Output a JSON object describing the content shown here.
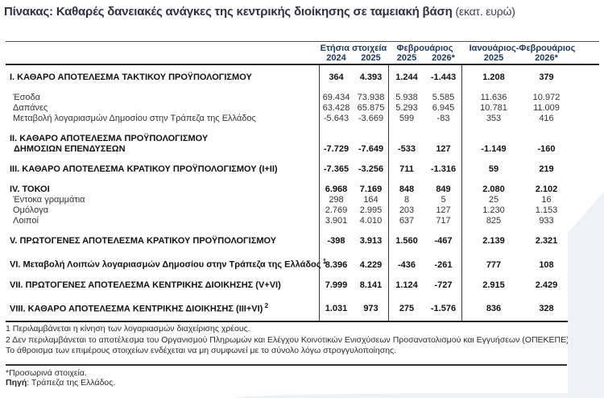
{
  "title": {
    "main": "Πίνακας: Καθαρές δανειακές ανάγκες της κεντρικής διοίκησης σε ταμειακή βάση",
    "unit": "(εκατ. ευρώ)"
  },
  "table": {
    "col_groups": [
      {
        "label": "Ετήσια στοιχεία",
        "cols": [
          "2024",
          "2025"
        ]
      },
      {
        "label": "Φεβρουάριος",
        "cols": [
          "2025",
          "2026*"
        ]
      },
      {
        "label": "Ιανουάριος-Φεβρουάριος",
        "cols": [
          "2025",
          "2026*"
        ]
      }
    ],
    "rows": [
      {
        "label": "Ι. ΚΑΘΑΡΟ ΑΠΟΤΕΛΕΣΜΑ  ΤΑΚΤΙΚΟΥ ΠΡΟΫΠΟΛΟΓΙΣΜΟΥ",
        "style": "main",
        "spacer": false,
        "values": [
          "364",
          "4.393",
          "1.244",
          "-1.443",
          "1.208",
          "379"
        ]
      },
      {
        "label": "Έσοδα",
        "style": "sub",
        "spacer": true,
        "values": [
          "69.434",
          "73.938",
          "5.938",
          "5.585",
          "11.636",
          "10.972"
        ]
      },
      {
        "label": "Δαπάνες",
        "style": "sub",
        "spacer": false,
        "values": [
          "63.428",
          "65.875",
          "5.293",
          "6.945",
          "10.781",
          "11.009"
        ]
      },
      {
        "label": "Μεταβολή λογαριασμών Δημοσίου στην Τράπεζα της Ελλάδος",
        "style": "sub",
        "spacer": false,
        "values": [
          "-5.643",
          "-3.669",
          "599",
          "-83",
          "353",
          "416"
        ]
      },
      {
        "label": "ΙΙ. ΚΑΘΑΡΟ ΑΠΟΤΕΛΕΣΜΑ ΠΡΟΫΠΟΛΟΓΙΣΜΟΥ",
        "label2": "ΔΗΜΟΣΙΩΝ ΕΠΕΝΔΥΣΕΩΝ",
        "style": "main",
        "spacer": true,
        "values": [
          "-7.729",
          "-7.649",
          "-533",
          "127",
          "-1.149",
          "-160"
        ]
      },
      {
        "label": "ΙΙΙ. ΚΑΘΑΡΟ ΑΠΟΤΕΛΕΣΜΑ ΚΡΑΤΙΚΟΥ ΠΡΟΫΠΟΛΟΓΙΣΜΟΥ (Ι+ΙΙ)",
        "style": "main",
        "spacer": true,
        "values": [
          "-7.365",
          "-3.256",
          "711",
          "-1.316",
          "59",
          "219"
        ]
      },
      {
        "label": "IV. ΤΟΚΟΙ",
        "style": "main",
        "spacer": true,
        "values": [
          "6.968",
          "7.169",
          "848",
          "849",
          "2.080",
          "2.102"
        ]
      },
      {
        "label": "Έντοκα γραμμάτια",
        "style": "sub",
        "spacer": false,
        "values": [
          "298",
          "164",
          "8",
          "5",
          "25",
          "16"
        ]
      },
      {
        "label": "Ομόλογα",
        "style": "sub",
        "spacer": false,
        "values": [
          "2.769",
          "2.995",
          "203",
          "127",
          "1.230",
          "1.153"
        ]
      },
      {
        "label": "Λοιποί",
        "style": "sub",
        "spacer": false,
        "values": [
          "3.901",
          "4.010",
          "637",
          "717",
          "825",
          "933"
        ]
      },
      {
        "label": "V. ΠΡΩΤΟΓΕΝΕΣ ΑΠΟΤΕΛΕΣΜΑ  ΚΡΑΤΙΚΟΥ ΠΡΟΫΠΟΛΟΓΙΣΜΟΥ",
        "style": "main",
        "spacer": true,
        "values": [
          "-398",
          "3.913",
          "1.560",
          "-467",
          "2.139",
          "2.321"
        ]
      },
      {
        "label": "VI. Μεταβολή Λοιπών λογαριασμών Δημοσίου στην Τράπεζα της Ελλάδος",
        "sup": "1",
        "style": "main",
        "spacer": true,
        "values": [
          "8.396",
          "4.229",
          "-436",
          "-261",
          "777",
          "108"
        ]
      },
      {
        "label": "VII. ΠΡΩΤΟΓΕΝΕΣ ΑΠΟΤΕΛΕΣΜΑ ΚΕΝΤΡΙΚΗΣ ΔΙΟΙΚΗΣΗΣ (V+VI)",
        "style": "main",
        "spacer": true,
        "values": [
          "7.999",
          "8.141",
          "1.124",
          "-727",
          "2.915",
          "2.429"
        ]
      },
      {
        "label": "VIII. ΚΑΘΑΡΟ ΑΠΟΤΕΛΕΣΜΑ ΚΕΝΤΡΙΚΗΣ ΔΙΟΙΚΗΣΗΣ (ΙΙΙ+VI)",
        "sup": "2",
        "style": "main",
        "spacer": true,
        "values": [
          "1.031",
          "973",
          "275",
          "-1.576",
          "836",
          "328"
        ]
      }
    ]
  },
  "footnotes": [
    "1 Περιλαμβάνεται η κίνηση των λογαριασμών διαχείρισης χρέους.",
    "2 Δεν περιλαμβάνεται το αποτέλεσμα του Οργανισμού Πληρωμών και Ελέγχου Κοινοτικών Ενισχύσεων Προσανατολισμού και Εγγυήσεων (ΟΠΕΚΕΠΕ).",
    "Το άθροισμα των επιμέρους στοιχείων ενδέχεται να μη συμφωνεί με το σύνολο λόγω στρογγυλοποίησης."
  ],
  "provisional_note": "*Προσωρινά στοιχεία.",
  "source": {
    "label": "Πηγή",
    "text": ": Τράπεζα της Ελλάδος."
  },
  "colors": {
    "header_navy": "#1f3864",
    "title": "#2f3142",
    "corner_gray": "#eef1f6"
  }
}
